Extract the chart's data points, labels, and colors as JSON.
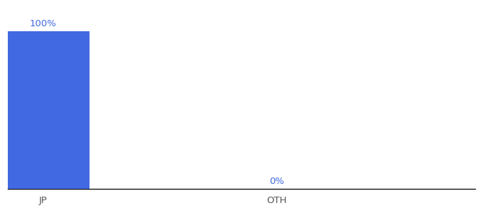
{
  "categories": [
    "JP",
    "OTH"
  ],
  "values": [
    100,
    0
  ],
  "bar_color": "#4169e1",
  "label_color": "#4169e1",
  "tick_color": "#555555",
  "background_color": "#ffffff",
  "ylim": [
    0,
    115
  ],
  "bar_width": 0.4,
  "label_fontsize": 9.5,
  "tick_fontsize": 9.5,
  "xlim": [
    -0.15,
    1.85
  ]
}
